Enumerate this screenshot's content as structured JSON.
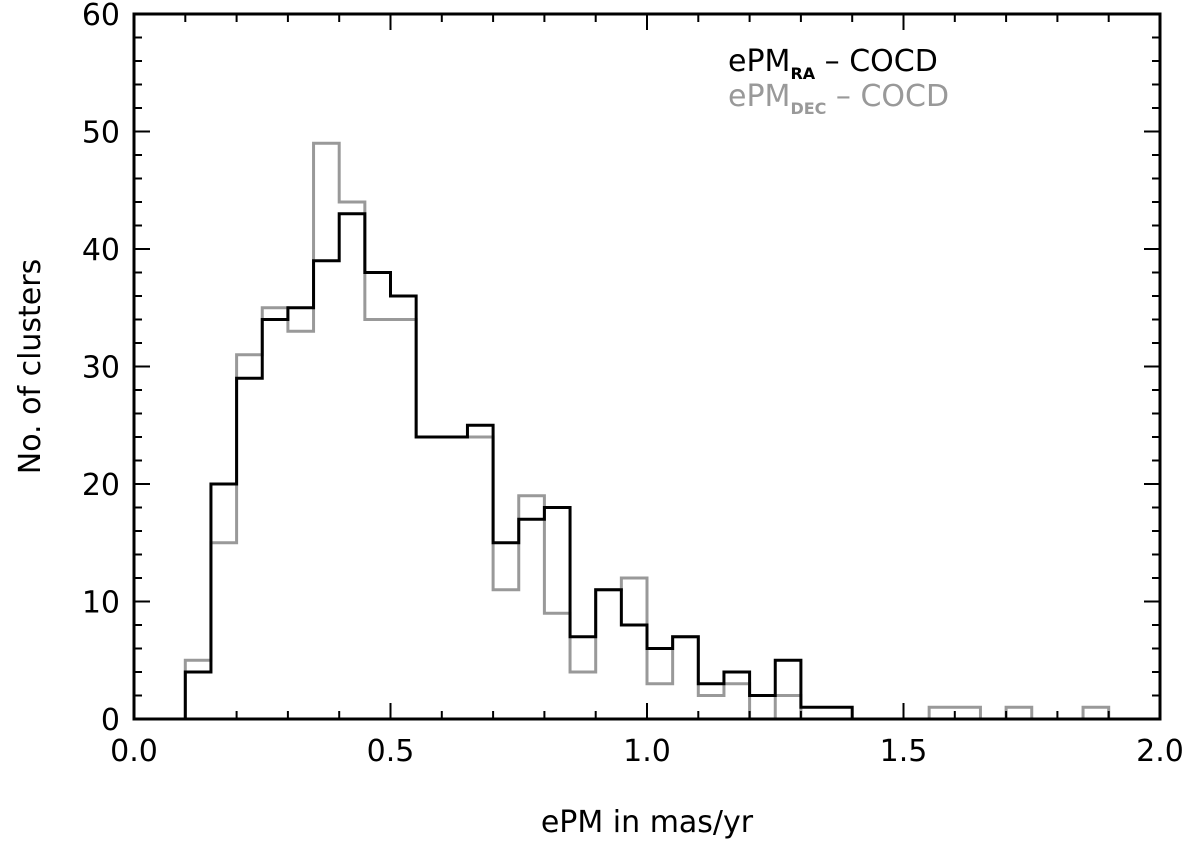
{
  "chart_data": {
    "type": "histogram",
    "xlabel": "ePM in mas/yr",
    "ylabel": "No. of clusters",
    "xlim": [
      0.0,
      2.0
    ],
    "ylim": [
      0,
      60
    ],
    "xticks": [
      "0.0",
      "0.5",
      "1.0",
      "1.5",
      "2.0"
    ],
    "yticks": [
      "0",
      "10",
      "20",
      "30",
      "40",
      "50",
      "60"
    ],
    "bin_width": 0.05,
    "bin_start": 0.0,
    "series": [
      {
        "legend_main": "ePM",
        "legend_sub": "RA",
        "legend_rest": " – COCD",
        "color": "#000000",
        "values": [
          0,
          0,
          4,
          20,
          29,
          34,
          35,
          39,
          43,
          38,
          36,
          24,
          24,
          25,
          15,
          17,
          18,
          7,
          11,
          8,
          6,
          7,
          3,
          4,
          2,
          5,
          1,
          1,
          0,
          0,
          0,
          0,
          0,
          0,
          0,
          0,
          0,
          0,
          0,
          0
        ]
      },
      {
        "legend_main": "ePM",
        "legend_sub": "DEC",
        "legend_rest": " – COCD",
        "color": "#999999",
        "values": [
          0,
          0,
          5,
          15,
          31,
          35,
          33,
          49,
          44,
          34,
          34,
          24,
          24,
          24,
          11,
          19,
          9,
          4,
          11,
          12,
          3,
          7,
          2,
          3,
          0,
          2,
          0,
          0,
          0,
          0,
          0,
          1,
          1,
          0,
          1,
          0,
          0,
          1,
          0,
          0
        ]
      }
    ],
    "legend_position": "top-right",
    "grid": false
  }
}
